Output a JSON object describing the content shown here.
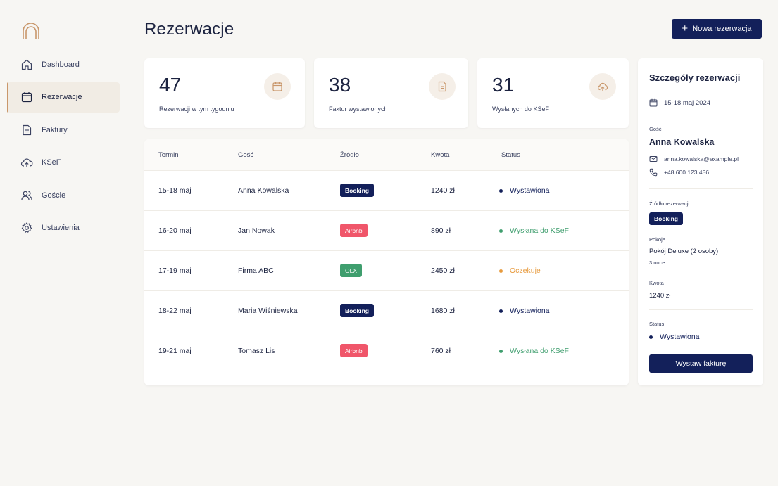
{
  "colors": {
    "navy": "#13205a",
    "accent": "#c9976b",
    "booking": "#13205a",
    "airbnb": "#f0566a",
    "olx": "#3f9e6e",
    "status_issued": "#13205a",
    "status_sent": "#3f9e6e",
    "status_waiting": "#e79a3d"
  },
  "sidebar": {
    "items": [
      {
        "label": "Dashboard",
        "icon": "home-icon",
        "active": false
      },
      {
        "label": "Rezerwacje",
        "icon": "calendar-icon",
        "active": true
      },
      {
        "label": "Faktury",
        "icon": "document-icon",
        "active": false
      },
      {
        "label": "KSeF",
        "icon": "cloud-upload-icon",
        "active": false
      },
      {
        "label": "Goście",
        "icon": "users-icon",
        "active": false
      },
      {
        "label": "Ustawienia",
        "icon": "gear-icon",
        "active": false
      }
    ]
  },
  "header": {
    "title": "Rezerwacje",
    "new_button": "Nowa rezerwacja"
  },
  "stats": [
    {
      "value": "47",
      "label": "Rezerwacji w tym tygodniu",
      "icon": "calendar-icon"
    },
    {
      "value": "38",
      "label": "Faktur wystawionych",
      "icon": "document-icon"
    },
    {
      "value": "31",
      "label": "Wysłanych do KSeF",
      "icon": "cloud-upload-icon"
    }
  ],
  "table": {
    "headers": [
      "Termin",
      "Gość",
      "Źródło",
      "Kwota",
      "Status"
    ],
    "rows": [
      {
        "term": "15-18 maj",
        "guest": "Anna Kowalska",
        "source": "Booking",
        "amount": "1240 zł",
        "status": "Wystawiona"
      },
      {
        "term": "16-20 maj",
        "guest": "Jan Nowak",
        "source": "Airbnb",
        "amount": "890 zł",
        "status": "Wysłana do KSeF"
      },
      {
        "term": "17-19 maj",
        "guest": "Firma ABC",
        "source": "OLX",
        "amount": "2450 zł",
        "status": "Oczekuje"
      },
      {
        "term": "18-22 maj",
        "guest": "Maria Wiśniewska",
        "source": "Booking",
        "amount": "1680 zł",
        "status": "Wystawiona"
      },
      {
        "term": "19-21 maj",
        "guest": "Tomasz Lis",
        "source": "Airbnb",
        "amount": "760 zł",
        "status": "Wysłana do KSeF"
      }
    ]
  },
  "details": {
    "title": "Szczegóły rezerwacji",
    "dates": "15-18 maj 2024",
    "guest_label": "Gość",
    "guest_name": "Anna Kowalska",
    "email": "anna.kowalska@example.pl",
    "phone": "+48 600 123 456",
    "source_label": "Źródło rezerwacji",
    "source": "Booking",
    "rooms_label": "Pokoje",
    "room": "Pokój Deluxe (2 osoby)",
    "nights": "3 noce",
    "amount_label": "Kwota",
    "amount": "1240 zł",
    "status_label": "Status",
    "status": "Wystawiona",
    "invoice_button": "Wystaw fakturę"
  }
}
